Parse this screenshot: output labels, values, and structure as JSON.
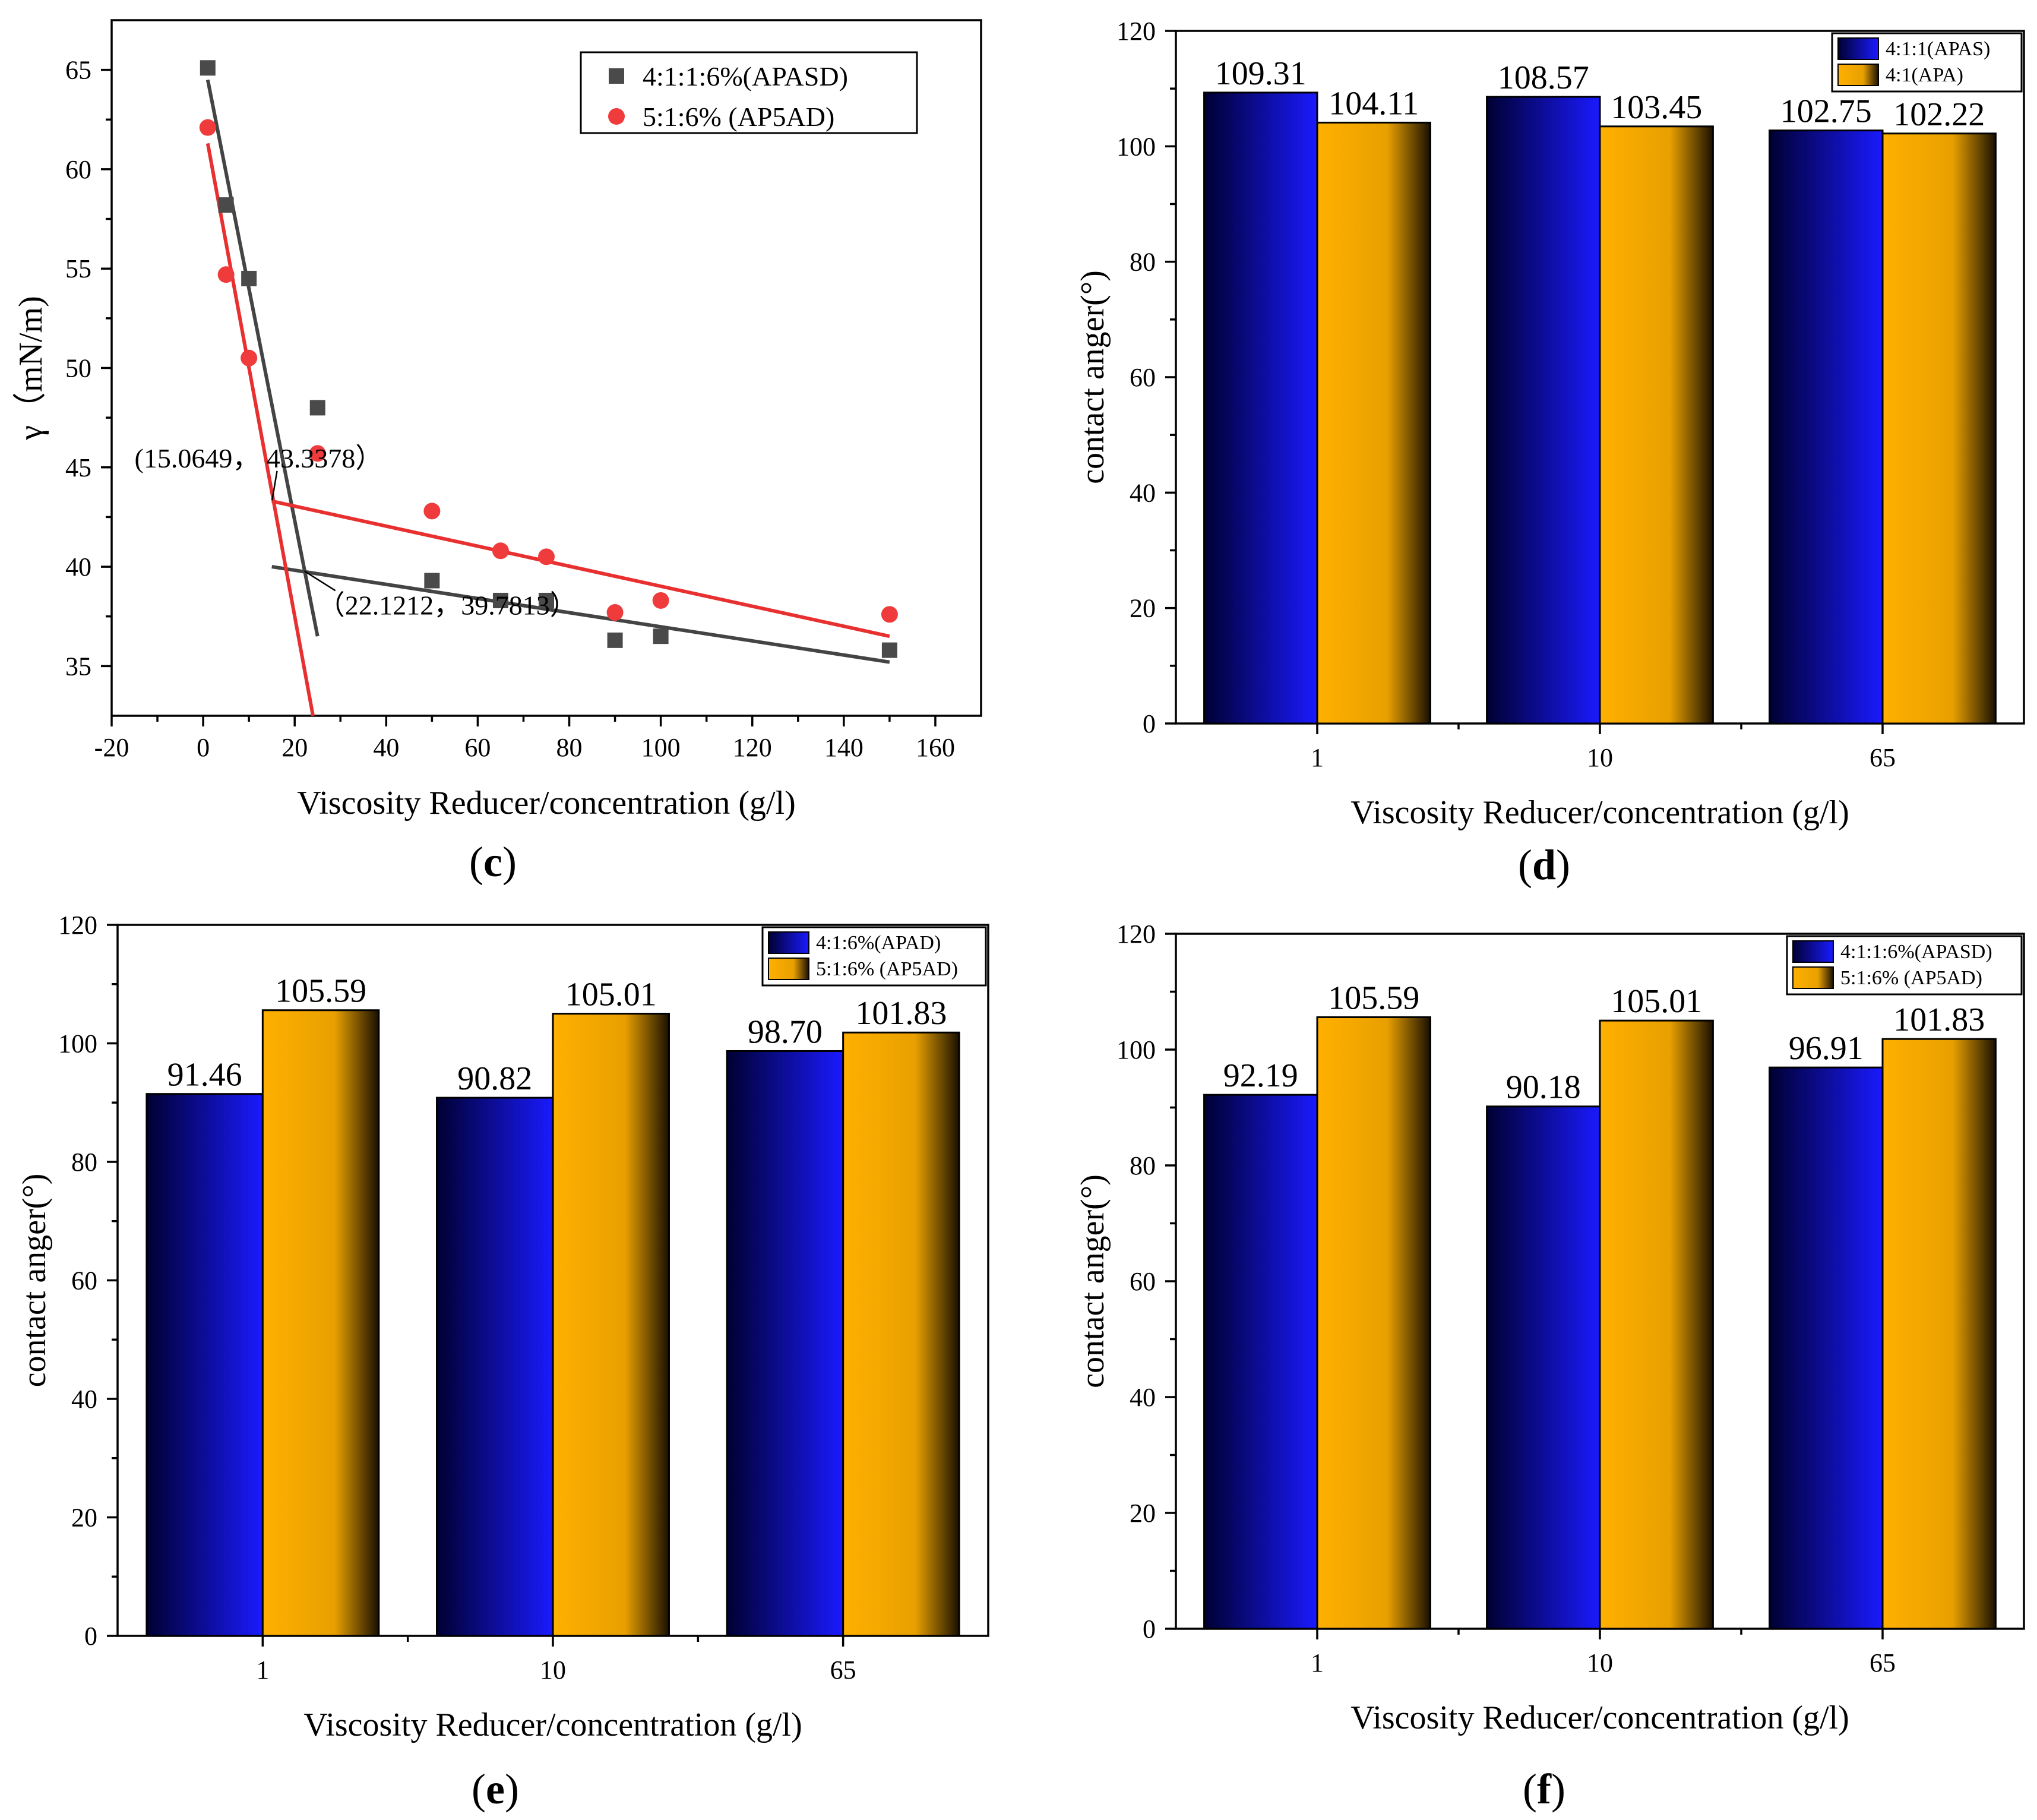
{
  "figure_labels": [
    "(c)",
    "(d)",
    "(e)",
    "(f)"
  ],
  "colors": {
    "series_blue_light": "#1a1aff",
    "series_blue_dark": "#000033",
    "series_orange_light": "#ffb000",
    "series_orange_dark": "#1a1000",
    "scatter_gray": "#4a4a4a",
    "scatter_red": "#ef3b3b",
    "fit_gray": "#444444",
    "fit_red": "#e83030"
  },
  "chart_data": [
    {
      "id": "c",
      "type": "scatter",
      "panel_label": "c",
      "xlabel": "Viscosity Reducer/concentration (g/l)",
      "ylabel": "γ（mN/m)",
      "xlim": [
        -20,
        170
      ],
      "ylim": [
        32.5,
        67.5
      ],
      "xticks": [
        -20,
        0,
        20,
        40,
        60,
        80,
        100,
        120,
        140,
        160
      ],
      "yticks": [
        35,
        40,
        45,
        50,
        55,
        60,
        65
      ],
      "legend_position": "top-right",
      "series": [
        {
          "name": "4:1:1:6%(APASD)",
          "marker": "square",
          "color": "#4a4a4a",
          "points": [
            [
              1,
              65.1
            ],
            [
              5,
              58.2
            ],
            [
              10,
              54.5
            ],
            [
              25,
              48.0
            ],
            [
              50,
              39.3
            ],
            [
              65,
              38.3
            ],
            [
              75,
              38.3
            ],
            [
              90,
              36.3
            ],
            [
              100,
              36.5
            ],
            [
              150,
              35.8
            ]
          ]
        },
        {
          "name": "5:1:6% (AP5AD)",
          "marker": "circle",
          "color": "#ef3b3b",
          "points": [
            [
              1,
              62.1
            ],
            [
              5,
              54.7
            ],
            [
              10,
              50.5
            ],
            [
              25,
              45.7
            ],
            [
              50,
              42.8
            ],
            [
              65,
              40.8
            ],
            [
              75,
              40.5
            ],
            [
              90,
              37.7
            ],
            [
              100,
              38.3
            ],
            [
              150,
              37.6
            ]
          ]
        }
      ],
      "fit_lines": [
        {
          "series": "4:1:1:6%(APASD)",
          "color": "#444444",
          "from": [
            1,
            64.5
          ],
          "to": [
            25,
            36.5
          ]
        },
        {
          "series": "4:1:1:6%(APASD)",
          "color": "#444444",
          "from": [
            15,
            40.0
          ],
          "to": [
            150,
            35.2
          ]
        },
        {
          "series": "5:1:6% (AP5AD)",
          "color": "#e83030",
          "from": [
            1,
            61.3
          ],
          "to": [
            24,
            32.5
          ]
        },
        {
          "series": "5:1:6% (AP5AD)",
          "color": "#e83030",
          "from": [
            15,
            43.3
          ],
          "to": [
            150,
            36.5
          ]
        }
      ],
      "annotations": [
        {
          "text": "(15.0649， 43.3378）",
          "point": [
            15.0649,
            43.3378
          ],
          "text_at": [
            -15,
            45.0
          ]
        },
        {
          "text": "（22.1212，39.7813）",
          "point": [
            22.1212,
            39.7813
          ],
          "text_at": [
            25,
            37.6
          ]
        }
      ]
    },
    {
      "id": "d",
      "type": "bar",
      "panel_label": "d",
      "xlabel": "Viscosity Reducer/concentration (g/l)",
      "ylabel": "contact anger(°)",
      "categories": [
        "1",
        "10",
        "65"
      ],
      "ylim": [
        0,
        120
      ],
      "yticks": [
        0,
        20,
        40,
        60,
        80,
        100,
        120
      ],
      "legend_position": "top-right",
      "series": [
        {
          "name": "4:1:1(APAS)",
          "values": [
            109.31,
            108.57,
            102.75
          ],
          "labels": [
            "109.31",
            "108.57",
            "102.75"
          ]
        },
        {
          "name": "4:1(APA)",
          "values": [
            104.11,
            103.45,
            102.22
          ],
          "labels": [
            "104.11",
            "103.45",
            "102.22"
          ]
        }
      ]
    },
    {
      "id": "e",
      "type": "bar",
      "panel_label": "e",
      "xlabel": "Viscosity Reducer/concentration (g/l)",
      "ylabel": "contact anger(°)",
      "categories": [
        "1",
        "10",
        "65"
      ],
      "ylim": [
        0,
        120
      ],
      "yticks": [
        0,
        20,
        40,
        60,
        80,
        100,
        120
      ],
      "legend_position": "top-right",
      "series": [
        {
          "name": "4:1:6%(APAD)",
          "values": [
            91.46,
            90.82,
            98.7
          ],
          "labels": [
            "91.46",
            "90.82",
            "98.70"
          ]
        },
        {
          "name": "5:1:6% (AP5AD)",
          "values": [
            105.59,
            105.01,
            101.83
          ],
          "labels": [
            "105.59",
            "105.01",
            "101.83"
          ]
        }
      ]
    },
    {
      "id": "f",
      "type": "bar",
      "panel_label": "f",
      "xlabel": "Viscosity Reducer/concentration (g/l)",
      "ylabel": "contact anger(°)",
      "categories": [
        "1",
        "10",
        "65"
      ],
      "ylim": [
        0,
        120
      ],
      "yticks": [
        0,
        20,
        40,
        60,
        80,
        100,
        120
      ],
      "legend_position": "top-right",
      "series": [
        {
          "name": "4:1:1:6%(APASD)",
          "values": [
            92.19,
            90.18,
            96.91
          ],
          "labels": [
            "92.19",
            "90.18",
            "96.91"
          ]
        },
        {
          "name": "5:1:6% (AP5AD)",
          "values": [
            105.59,
            105.01,
            101.83
          ],
          "labels": [
            "105.59",
            "105.01",
            "101.83"
          ]
        }
      ]
    }
  ]
}
